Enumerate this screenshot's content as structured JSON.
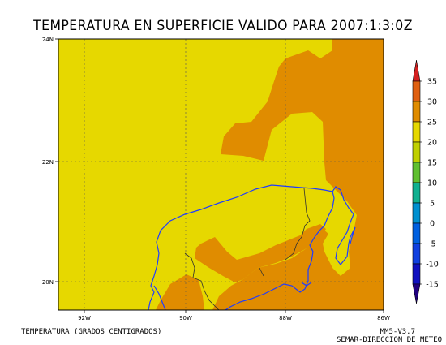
{
  "title": "TEMPERATURA EN SUPERFICIE VALIDO PARA 2007:1:3:0Z",
  "field_label": "TEMPERATURA (GRADOS CENTIGRADOS)",
  "model_label": "MM5-V3.7",
  "agency_label": "SEMAR-DIRECCION DE METEO",
  "colors": {
    "band_20_25": "#e6d800",
    "band_25_30": "#e08c00",
    "coastline": "#1f3cff",
    "border": "#303030",
    "grid": "#555555"
  },
  "axes": {
    "x_ticks": [
      "92W",
      "90W",
      "88W",
      "86W"
    ],
    "y_ticks": [
      "24N",
      "22N",
      "20N"
    ]
  },
  "colorbar": {
    "labels": [
      "35",
      "30",
      "25",
      "20",
      "15",
      "10",
      "5",
      "0",
      "-5",
      "-10",
      "-15"
    ],
    "colors": [
      "#d42020",
      "#e06010",
      "#e08c00",
      "#e6d800",
      "#c0d000",
      "#60c030",
      "#10b090",
      "#0090d0",
      "#0060e0",
      "#1040e0",
      "#1010c0",
      "#200080"
    ]
  }
}
